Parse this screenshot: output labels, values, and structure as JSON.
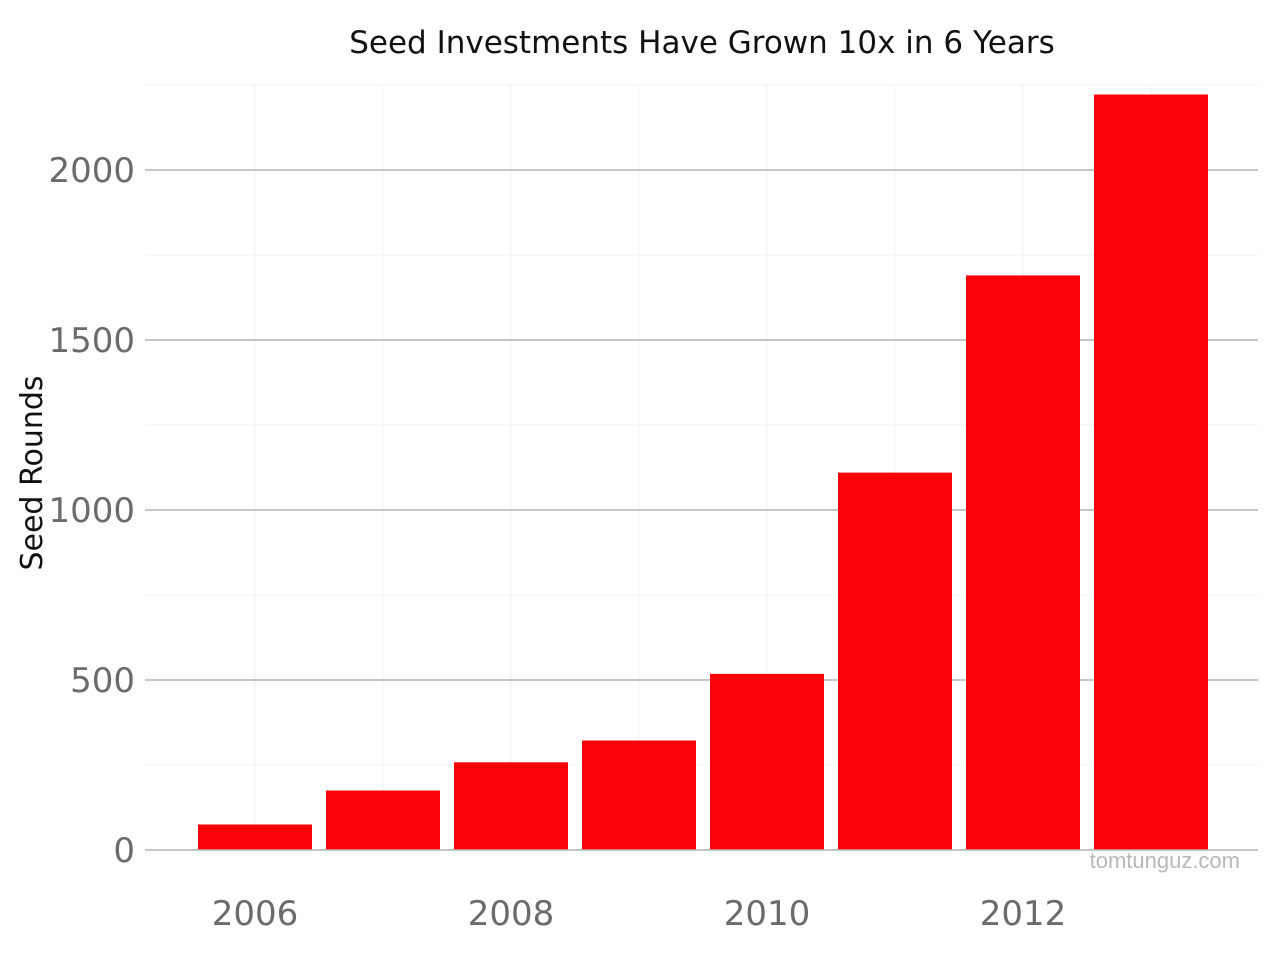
{
  "chart_data": {
    "type": "bar",
    "title": "Seed Investments Have Grown 10x in 6 Years",
    "xlabel": "",
    "ylabel": "Seed Rounds",
    "categories": [
      2006,
      2007,
      2008,
      2009,
      2010,
      2011,
      2012,
      2013
    ],
    "values": [
      75,
      175,
      258,
      322,
      518,
      1110,
      1690,
      2222
    ],
    "x_ticks": [
      "2006",
      "2008",
      "2010",
      "2012"
    ],
    "y_ticks": [
      "0",
      "500",
      "1000",
      "1500",
      "2000"
    ],
    "ylim": [
      0,
      2250
    ],
    "grid": true,
    "legend": "none",
    "bar_color": "#fa0008",
    "watermark": "tomtunguz.com"
  }
}
